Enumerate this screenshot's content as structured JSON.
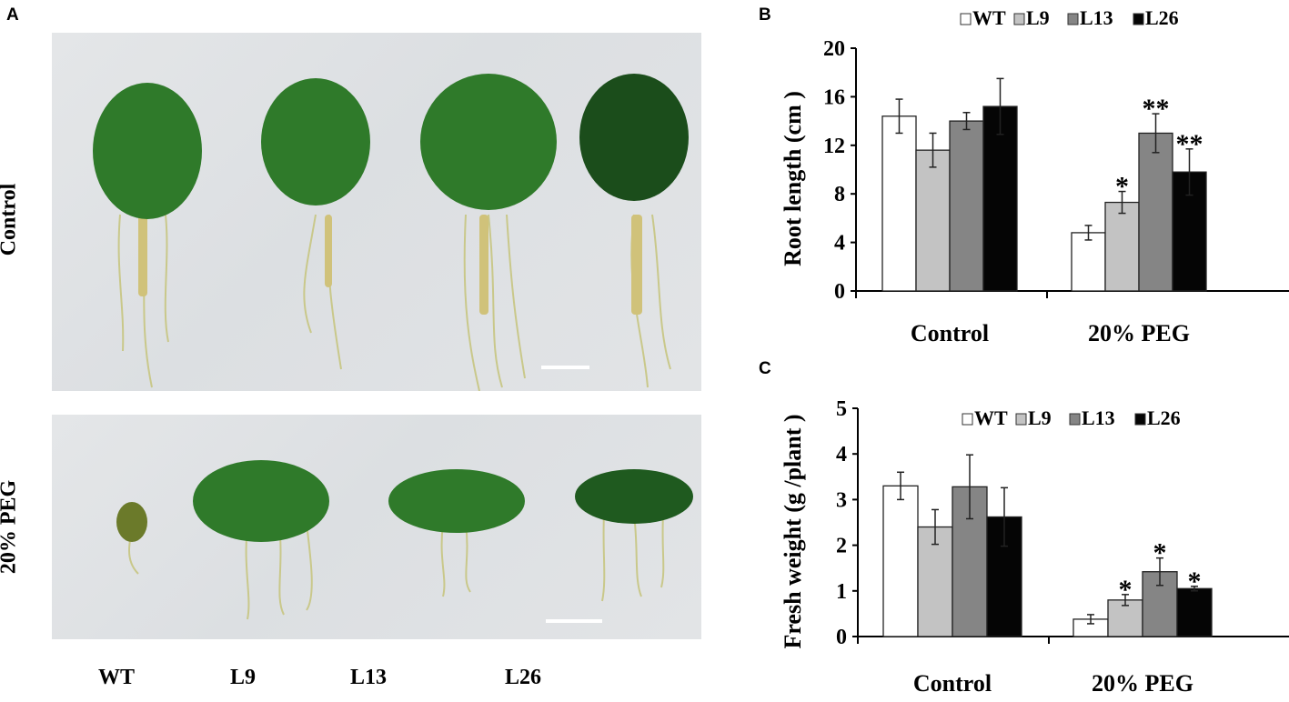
{
  "figure": {
    "panel_a": {
      "letter": "A",
      "row_labels": [
        "Control",
        "20% PEG"
      ],
      "column_labels": [
        "WT",
        "L9",
        "L13",
        "L26"
      ]
    },
    "panel_b": {
      "letter": "B"
    },
    "panel_c": {
      "letter": "C"
    }
  },
  "chart_data": [
    {
      "panel": "B",
      "type": "bar",
      "title": "",
      "categories": [
        "Control",
        "20% PEG"
      ],
      "xlabel": "",
      "ylabel": "Root length (cm )",
      "ylim": [
        0,
        20
      ],
      "yticks": [
        0,
        4,
        8,
        12,
        16,
        20
      ],
      "legend": [
        "WT",
        "L9",
        "L13",
        "L26"
      ],
      "legend_position": "top",
      "grid": false,
      "series": [
        {
          "name": "WT",
          "color": "#ffffff",
          "values": [
            14.4,
            4.8
          ],
          "errors": [
            1.4,
            0.6
          ],
          "annotations": [
            "",
            ""
          ]
        },
        {
          "name": "L9",
          "color": "#c3c3c3",
          "values": [
            11.6,
            7.3
          ],
          "errors": [
            1.4,
            0.9
          ],
          "annotations": [
            "",
            "*"
          ]
        },
        {
          "name": "L13",
          "color": "#858585",
          "values": [
            14.0,
            13.0
          ],
          "errors": [
            0.7,
            1.6
          ],
          "annotations": [
            "",
            "**"
          ]
        },
        {
          "name": "L26",
          "color": "#050505",
          "values": [
            15.2,
            9.8
          ],
          "errors": [
            2.3,
            1.9
          ],
          "annotations": [
            "",
            "**"
          ]
        }
      ]
    },
    {
      "panel": "C",
      "type": "bar",
      "title": "",
      "categories": [
        "Control",
        "20% PEG"
      ],
      "xlabel": "",
      "ylabel": "Fresh weight (g /plant )",
      "ylim": [
        0,
        5
      ],
      "yticks": [
        0,
        1,
        2,
        3,
        4,
        5
      ],
      "legend": [
        "WT",
        "L9",
        "L13",
        "L26"
      ],
      "legend_position": "top",
      "grid": false,
      "series": [
        {
          "name": "WT",
          "color": "#ffffff",
          "values": [
            3.3,
            0.38
          ],
          "errors": [
            0.3,
            0.1
          ],
          "annotations": [
            "",
            ""
          ]
        },
        {
          "name": "L9",
          "color": "#c3c3c3",
          "values": [
            2.4,
            0.8
          ],
          "errors": [
            0.38,
            0.12
          ],
          "annotations": [
            "",
            "*"
          ]
        },
        {
          "name": "L13",
          "color": "#858585",
          "values": [
            3.28,
            1.42
          ],
          "errors": [
            0.7,
            0.3
          ],
          "annotations": [
            "",
            "*"
          ]
        },
        {
          "name": "L26",
          "color": "#050505",
          "values": [
            2.62,
            1.05
          ],
          "errors": [
            0.64,
            0.05
          ],
          "annotations": [
            "",
            "*"
          ]
        }
      ]
    }
  ]
}
